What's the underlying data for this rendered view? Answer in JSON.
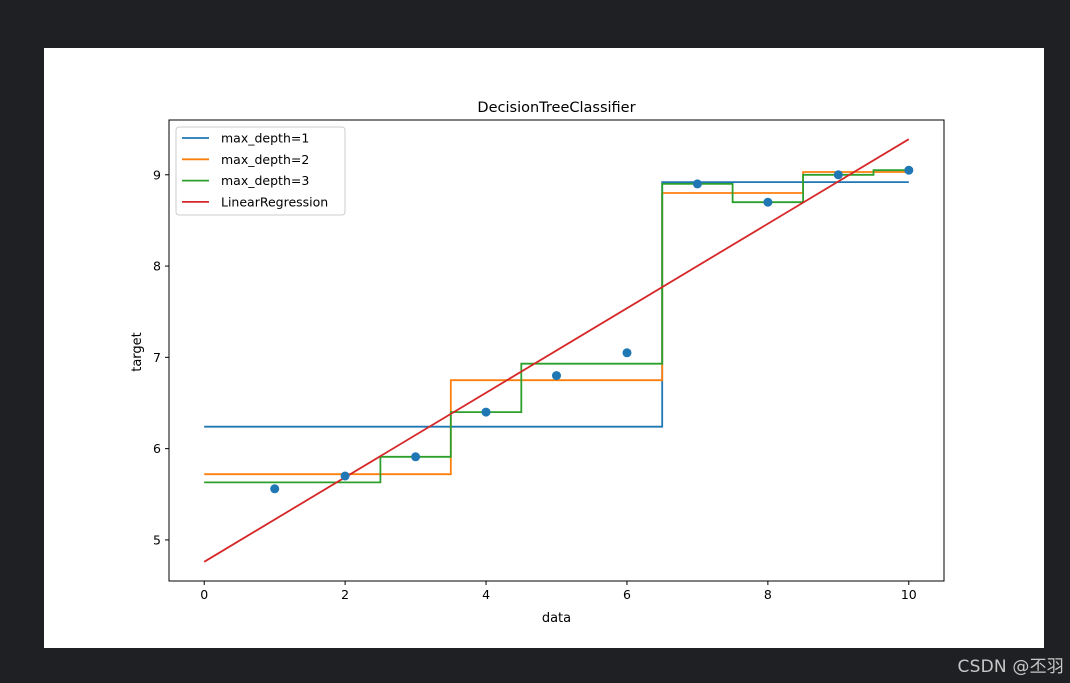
{
  "watermark": "CSDN @丕羽",
  "chart_data": {
    "type": "line",
    "title": "DecisionTreeClassifier",
    "xlabel": "data",
    "ylabel": "target",
    "xlim": [
      -0.5,
      10.5
    ],
    "ylim": [
      4.55,
      9.6
    ],
    "xticks": [
      0,
      2,
      4,
      6,
      8,
      10
    ],
    "xtick_labels": [
      "0",
      "2",
      "4",
      "6",
      "8",
      "10"
    ],
    "yticks": [
      5,
      6,
      7,
      8,
      9
    ],
    "ytick_labels": [
      "5",
      "6",
      "7",
      "8",
      "9"
    ],
    "grid": false,
    "legend_position": "upper-left",
    "scatter": {
      "color": "#1f77b4",
      "points": [
        {
          "x": 1,
          "y": 5.56
        },
        {
          "x": 2,
          "y": 5.7
        },
        {
          "x": 3,
          "y": 5.91
        },
        {
          "x": 4,
          "y": 6.4
        },
        {
          "x": 5,
          "y": 6.8
        },
        {
          "x": 6,
          "y": 7.05
        },
        {
          "x": 7,
          "y": 8.9
        },
        {
          "x": 8,
          "y": 8.7
        },
        {
          "x": 9,
          "y": 9.0
        },
        {
          "x": 10,
          "y": 9.05
        }
      ]
    },
    "series": [
      {
        "name": "max_depth=1",
        "color": "#1f77b4",
        "points": [
          [
            0,
            6.24
          ],
          [
            6.5,
            6.24
          ],
          [
            6.5,
            8.92
          ],
          [
            10,
            8.92
          ]
        ]
      },
      {
        "name": "max_depth=2",
        "color": "#ff7f0e",
        "points": [
          [
            0,
            5.72
          ],
          [
            3.5,
            5.72
          ],
          [
            3.5,
            6.75
          ],
          [
            6.5,
            6.75
          ],
          [
            6.5,
            8.8
          ],
          [
            8.5,
            8.8
          ],
          [
            8.5,
            9.03
          ],
          [
            10,
            9.03
          ]
        ]
      },
      {
        "name": "max_depth=3",
        "color": "#2ca02c",
        "points": [
          [
            0,
            5.63
          ],
          [
            2.5,
            5.63
          ],
          [
            2.5,
            5.91
          ],
          [
            3.5,
            5.91
          ],
          [
            3.5,
            6.4
          ],
          [
            4.5,
            6.4
          ],
          [
            4.5,
            6.93
          ],
          [
            6.5,
            6.93
          ],
          [
            6.5,
            8.9
          ],
          [
            7.5,
            8.9
          ],
          [
            7.5,
            8.7
          ],
          [
            8.5,
            8.7
          ],
          [
            8.5,
            9.0
          ],
          [
            9.5,
            9.0
          ],
          [
            9.5,
            9.05
          ],
          [
            10,
            9.05
          ]
        ]
      },
      {
        "name": "LinearRegression",
        "color": "#d62728",
        "points": [
          [
            0,
            4.76
          ],
          [
            10,
            9.39
          ]
        ]
      }
    ]
  }
}
